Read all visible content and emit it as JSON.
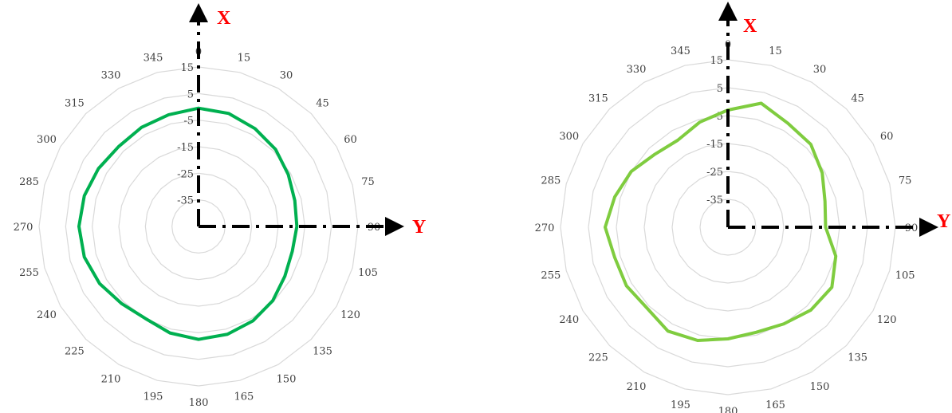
{
  "chart_data": [
    {
      "type": "radar",
      "angles": [
        "0",
        "15",
        "30",
        "45",
        "60",
        "75",
        "90",
        "105",
        "120",
        "135",
        "150",
        "165",
        "180",
        "195",
        "210",
        "225",
        "240",
        "255",
        "270",
        "285",
        "300",
        "315",
        "330",
        "345"
      ],
      "ring_ticks": [
        "-35",
        "-25",
        "-15",
        "-5",
        "5",
        "15"
      ],
      "rlim": [
        -45,
        15
      ],
      "axis_x_label": "X",
      "axis_y_label": "Y",
      "series": [
        {
          "color": "#00b050",
          "values": [
            -0.5,
            -1,
            -2.5,
            -4,
            -6,
            -7.5,
            -8,
            -8.5,
            -7.5,
            -5.5,
            -4,
            -3,
            -2.5,
            -3.5,
            -5,
            -4,
            -2,
            -0.5,
            0,
            -0.5,
            -1.5,
            -2.5,
            -2,
            -1.5
          ]
        }
      ]
    },
    {
      "type": "radar",
      "angles": [
        "0",
        "15",
        "30",
        "45",
        "60",
        "75",
        "90",
        "105",
        "120",
        "135",
        "150",
        "165",
        "180",
        "195",
        "210",
        "225",
        "240",
        "255",
        "270",
        "285",
        "300",
        "315",
        "330",
        "345"
      ],
      "ring_ticks": [
        "-35",
        "-25",
        "-15",
        "-5",
        "5",
        "15"
      ],
      "rlim": [
        -45,
        15
      ],
      "axis_x_label": "X",
      "axis_y_label": "Y",
      "series": [
        {
          "color": "#7fcc3f",
          "values": [
            -3,
            1,
            -2,
            -3,
            -6,
            -9,
            -10,
            -5,
            -2,
            -3,
            -5,
            -6,
            -5,
            -3,
            -2,
            -4,
            -3,
            -3,
            -1,
            -3,
            -5,
            -8,
            -9,
            -6
          ]
        }
      ]
    }
  ]
}
